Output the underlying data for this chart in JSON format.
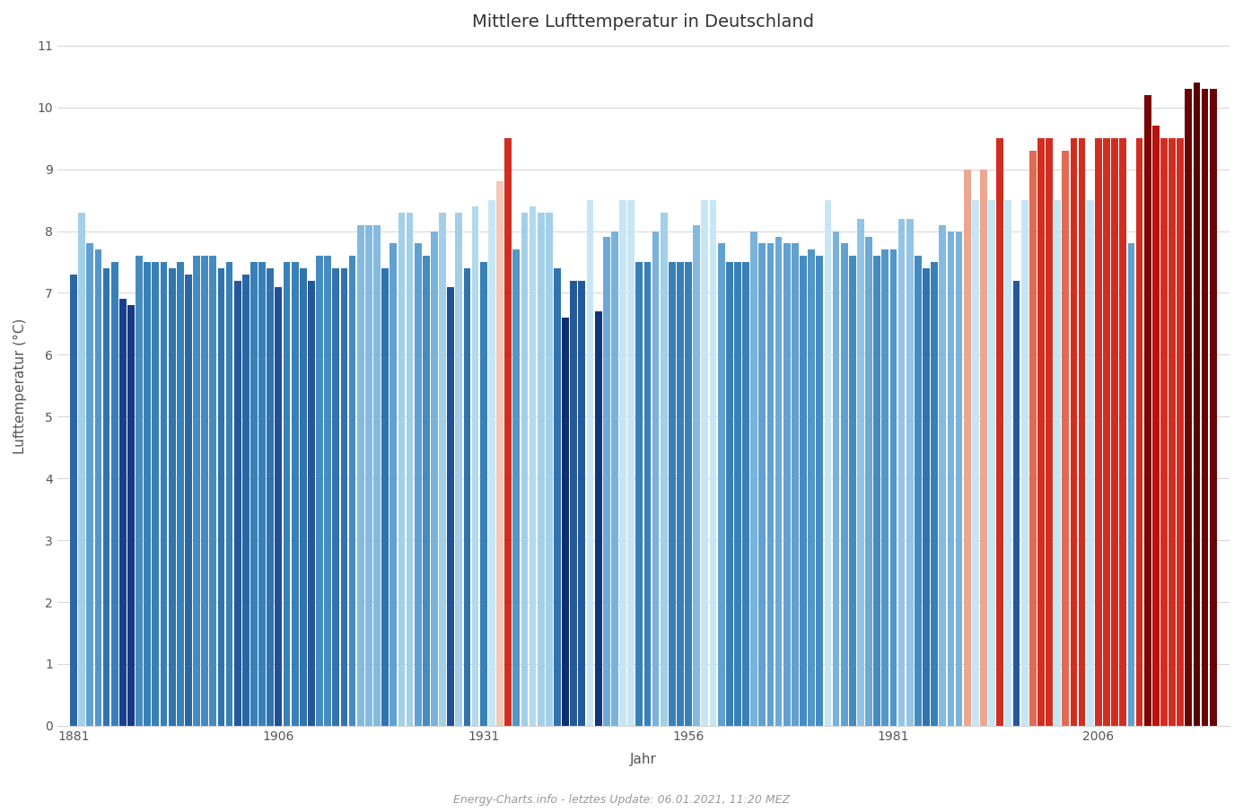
{
  "title": "Mittlere Lufttemperatur in Deutschland",
  "xlabel": "Jahr",
  "ylabel": "Lufttemperatur (°C)",
  "footer": "Energy-Charts.info - letztes Update: 06.01.2021, 11:20 MEZ",
  "ylim": [
    0,
    11
  ],
  "yticks": [
    0,
    1,
    2,
    3,
    4,
    5,
    6,
    7,
    8,
    9,
    10,
    11
  ],
  "xticks": [
    1881,
    1906,
    1931,
    1956,
    1981,
    2006
  ],
  "xlim": [
    1879,
    2022
  ],
  "bar_width": 0.85,
  "background_color": "#ffffff",
  "grid_color": "#d0d0d0",
  "text_color": "#555555",
  "title_fontsize": 14,
  "axis_fontsize": 10,
  "label_fontsize": 11,
  "footer_fontsize": 9,
  "footer_color": "#999999",
  "years": [
    1881,
    1882,
    1883,
    1884,
    1885,
    1886,
    1887,
    1888,
    1889,
    1890,
    1891,
    1892,
    1893,
    1894,
    1895,
    1896,
    1897,
    1898,
    1899,
    1900,
    1901,
    1902,
    1903,
    1904,
    1905,
    1906,
    1907,
    1908,
    1909,
    1910,
    1911,
    1912,
    1913,
    1914,
    1915,
    1916,
    1917,
    1918,
    1919,
    1920,
    1921,
    1922,
    1923,
    1924,
    1925,
    1926,
    1927,
    1928,
    1929,
    1930,
    1931,
    1932,
    1933,
    1934,
    1935,
    1936,
    1937,
    1938,
    1939,
    1940,
    1941,
    1942,
    1943,
    1944,
    1945,
    1946,
    1947,
    1948,
    1949,
    1950,
    1951,
    1952,
    1953,
    1954,
    1955,
    1956,
    1957,
    1958,
    1959,
    1960,
    1961,
    1962,
    1963,
    1964,
    1965,
    1966,
    1967,
    1968,
    1969,
    1970,
    1971,
    1972,
    1973,
    1974,
    1975,
    1976,
    1977,
    1978,
    1979,
    1980,
    1981,
    1982,
    1983,
    1984,
    1985,
    1986,
    1987,
    1988,
    1989,
    1990,
    1991,
    1992,
    1993,
    1994,
    1995,
    1996,
    1997,
    1998,
    1999,
    2000,
    2001,
    2002,
    2003,
    2004,
    2005,
    2006,
    2007,
    2008,
    2009,
    2010,
    2011,
    2012,
    2013,
    2014,
    2015,
    2016,
    2017,
    2018,
    2019,
    2020
  ],
  "temperatures": [
    7.3,
    8.3,
    7.8,
    7.7,
    7.4,
    7.5,
    6.9,
    6.8,
    7.6,
    7.5,
    7.5,
    7.5,
    7.4,
    7.5,
    7.3,
    7.6,
    7.6,
    7.6,
    7.4,
    7.5,
    7.2,
    7.3,
    7.5,
    7.5,
    7.4,
    7.1,
    7.5,
    7.5,
    7.4,
    7.2,
    7.6,
    7.6,
    7.4,
    7.4,
    7.6,
    8.1,
    8.1,
    8.1,
    7.4,
    7.8,
    8.3,
    8.3,
    7.8,
    7.6,
    8.0,
    8.3,
    7.1,
    8.3,
    7.4,
    8.4,
    7.5,
    8.5,
    8.8,
    9.5,
    7.7,
    8.3,
    8.4,
    8.3,
    8.3,
    7.4,
    6.6,
    7.2,
    7.2,
    8.5,
    6.7,
    7.9,
    8.0,
    8.5,
    8.5,
    7.5,
    7.5,
    8.0,
    8.3,
    7.5,
    7.5,
    7.5,
    8.1,
    8.5,
    8.5,
    7.8,
    7.5,
    7.5,
    7.5,
    8.0,
    7.8,
    7.8,
    7.9,
    7.8,
    7.8,
    7.6,
    7.7,
    7.6,
    8.5,
    8.0,
    7.8,
    7.6,
    8.2,
    7.9,
    7.6,
    7.7,
    7.7,
    8.2,
    8.2,
    7.6,
    7.4,
    7.5,
    8.1,
    8.0,
    8.0,
    9.0,
    8.5,
    9.0,
    8.5,
    9.5,
    8.5,
    7.2,
    8.5,
    9.3,
    9.5,
    9.5,
    8.5,
    9.3,
    9.5,
    9.5,
    8.5,
    9.5,
    9.5,
    9.5,
    9.5,
    7.8,
    9.5,
    10.2,
    9.7,
    9.5,
    9.5,
    9.5,
    10.3,
    10.4,
    10.3,
    10.3
  ],
  "color_stops_blue": [
    [
      6.0,
      [
        0.04,
        0.1,
        0.33
      ]
    ],
    [
      6.6,
      [
        0.06,
        0.18,
        0.45
      ]
    ],
    [
      6.9,
      [
        0.1,
        0.25,
        0.55
      ]
    ],
    [
      7.2,
      [
        0.14,
        0.35,
        0.6
      ]
    ],
    [
      7.5,
      [
        0.22,
        0.5,
        0.72
      ]
    ],
    [
      7.8,
      [
        0.38,
        0.63,
        0.82
      ]
    ],
    [
      8.1,
      [
        0.52,
        0.73,
        0.88
      ]
    ],
    [
      8.4,
      [
        0.7,
        0.85,
        0.93
      ]
    ],
    [
      8.5,
      [
        0.78,
        0.9,
        0.96
      ]
    ]
  ],
  "color_stops_red": [
    [
      8.5,
      [
        0.96,
        0.87,
        0.83
      ]
    ],
    [
      8.8,
      [
        0.95,
        0.78,
        0.72
      ]
    ],
    [
      9.0,
      [
        0.93,
        0.65,
        0.57
      ]
    ],
    [
      9.3,
      [
        0.88,
        0.42,
        0.32
      ]
    ],
    [
      9.5,
      [
        0.82,
        0.18,
        0.13
      ]
    ],
    [
      9.7,
      [
        0.72,
        0.08,
        0.06
      ]
    ],
    [
      10.0,
      [
        0.6,
        0.04,
        0.04
      ]
    ],
    [
      10.2,
      [
        0.48,
        0.02,
        0.02
      ]
    ],
    [
      10.4,
      [
        0.35,
        0.01,
        0.01
      ]
    ],
    [
      10.5,
      [
        0.28,
        0.0,
        0.0
      ]
    ]
  ]
}
